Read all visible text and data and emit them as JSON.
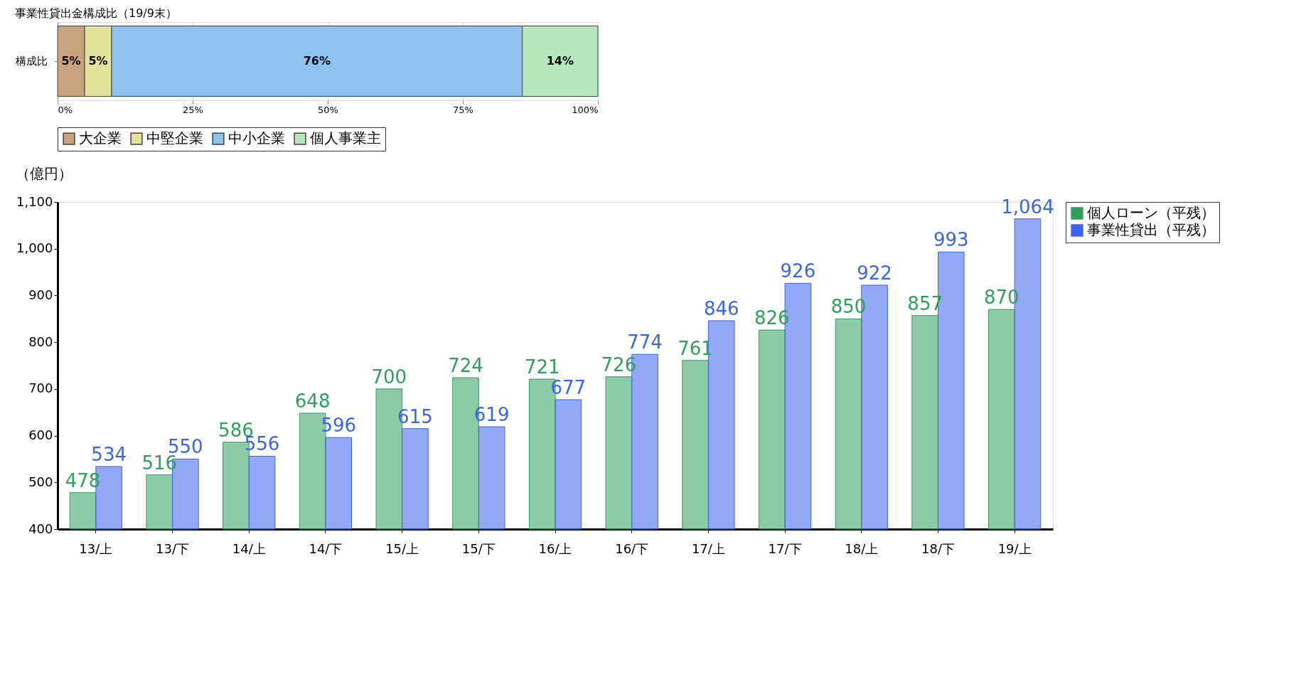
{
  "chart_data": [
    {
      "type": "bar",
      "orientation": "horizontal",
      "stacked": true,
      "title": "事業性貸出金構成比（19/9末）",
      "categories": [
        "構成比"
      ],
      "series": [
        {
          "name": "大企業",
          "color": "#c9a27e",
          "values": [
            5
          ],
          "value_labels": [
            "5%"
          ]
        },
        {
          "name": "中堅企業",
          "color": "#e2e29a",
          "values": [
            5
          ],
          "value_labels": [
            "5%"
          ]
        },
        {
          "name": "中小企業",
          "color": "#8ec3ef",
          "values": [
            76
          ],
          "value_labels": [
            "76%"
          ]
        },
        {
          "name": "個人事業主",
          "color": "#b5e8bb",
          "values": [
            14
          ],
          "value_labels": [
            "14%"
          ]
        }
      ],
      "xlim": [
        0,
        100
      ],
      "xticks": [
        {
          "value": 0,
          "label": "0%"
        },
        {
          "value": 25,
          "label": "25%"
        },
        {
          "value": 50,
          "label": "50%"
        },
        {
          "value": 75,
          "label": "75%"
        },
        {
          "value": 100,
          "label": "100%"
        }
      ],
      "grid": "x",
      "legend": "bottom"
    },
    {
      "type": "bar",
      "ylabel": "（億円）",
      "categories": [
        "13/上",
        "13/下",
        "14/上",
        "14/下",
        "15/上",
        "15/下",
        "16/上",
        "16/下",
        "17/上",
        "17/下",
        "18/上",
        "18/下",
        "19/上"
      ],
      "series": [
        {
          "name": "個人ローン（平残）",
          "color": "#2f9e5e",
          "values": [
            478,
            516,
            586,
            648,
            700,
            724,
            721,
            726,
            761,
            826,
            850,
            857,
            870
          ],
          "value_labels": [
            "478",
            "516",
            "586",
            "648",
            "700",
            "724",
            "721",
            "726",
            "761",
            "826",
            "850",
            "857",
            "870"
          ]
        },
        {
          "name": "事業性貸出（平残）",
          "color": "#3b63f0",
          "values": [
            534,
            550,
            556,
            596,
            615,
            619,
            677,
            774,
            846,
            926,
            922,
            993,
            1064
          ],
          "value_labels": [
            "534",
            "550",
            "556",
            "596",
            "615",
            "619",
            "677",
            "774",
            "846",
            "926",
            "922",
            "993",
            "1,064"
          ]
        }
      ],
      "ylim": [
        400,
        1100
      ],
      "yticks": [
        400,
        500,
        600,
        700,
        800,
        900,
        {
          "value": 1000,
          "label": "1,000"
        },
        {
          "value": 1100,
          "label": "1,100"
        }
      ],
      "grid": false,
      "legend": "right"
    }
  ]
}
